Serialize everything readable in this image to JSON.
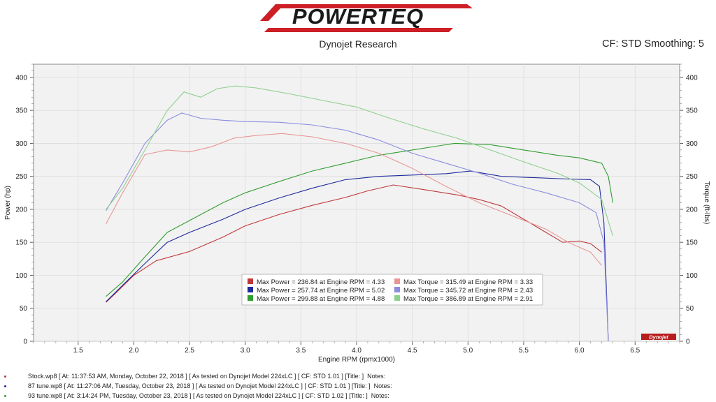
{
  "header": {
    "logo_text": "POWERTEQ",
    "subtitle": "Dynojet Research",
    "cf_info": "CF: STD Smoothing: 5"
  },
  "colors": {
    "stock": "#c0393a",
    "tune87": "#1f2a9c",
    "tune93": "#2f9e2f",
    "stock_torque": "#e89696",
    "tune87_torque": "#8c8ce0",
    "tune93_torque": "#8ed08e",
    "logo_red": "#cc1f26",
    "logo_dark": "#1a1a1a",
    "plot_bg": "#f2f2f2"
  },
  "chart_data": {
    "type": "line",
    "xlabel": "Engine RPM (rpmx1000)",
    "ylabel": "Power (hp)",
    "y2label": "Torque (ft-lbs)",
    "xlim": [
      1.1,
      6.9
    ],
    "ylim": [
      0,
      420
    ],
    "y2lim": [
      0,
      420
    ],
    "x_ticks": [
      "1.5",
      "2.0",
      "2.5",
      "3.0",
      "3.5",
      "4.0",
      "4.5",
      "5.0",
      "5.5",
      "6.0",
      "6.5"
    ],
    "y_ticks": [
      "0",
      "50",
      "100",
      "150",
      "200",
      "250",
      "300",
      "350",
      "400"
    ],
    "y2_ticks": [
      "0",
      "50",
      "100",
      "150",
      "200",
      "250",
      "300",
      "350",
      "400"
    ],
    "grid": true,
    "brand_mark": "Dynojet",
    "series": [
      {
        "color_key": "stock",
        "axis": "left",
        "x": [
          1.75,
          1.85,
          2.0,
          2.2,
          2.5,
          2.8,
          3.0,
          3.3,
          3.6,
          3.9,
          4.1,
          4.33,
          4.6,
          4.9,
          5.1,
          5.3,
          5.5,
          5.7,
          5.85,
          6.0,
          6.1,
          6.2
        ],
        "y": [
          59,
          75,
          100,
          122,
          136,
          158,
          175,
          192,
          206,
          218,
          228,
          237,
          230,
          222,
          215,
          205,
          185,
          165,
          150,
          152,
          148,
          135
        ]
      },
      {
        "color_key": "tune87",
        "axis": "left",
        "x": [
          1.75,
          1.9,
          2.1,
          2.3,
          2.5,
          2.8,
          3.0,
          3.3,
          3.6,
          3.9,
          4.2,
          4.5,
          4.8,
          5.02,
          5.3,
          5.6,
          5.9,
          6.1,
          6.18,
          6.22,
          6.26
        ],
        "y": [
          60,
          85,
          118,
          150,
          165,
          185,
          200,
          217,
          232,
          245,
          250,
          252,
          254,
          258,
          250,
          248,
          246,
          245,
          235,
          180,
          0
        ]
      },
      {
        "color_key": "tune93",
        "axis": "left",
        "x": [
          1.75,
          1.9,
          2.1,
          2.3,
          2.5,
          2.8,
          3.0,
          3.3,
          3.6,
          3.9,
          4.2,
          4.5,
          4.88,
          5.2,
          5.5,
          5.8,
          6.0,
          6.2,
          6.26,
          6.3
        ],
        "y": [
          68,
          90,
          128,
          165,
          183,
          210,
          225,
          242,
          258,
          270,
          282,
          290,
          300,
          298,
          290,
          282,
          278,
          270,
          250,
          210
        ]
      },
      {
        "color_key": "stock_torque",
        "axis": "right",
        "x": [
          1.75,
          1.9,
          2.1,
          2.3,
          2.5,
          2.7,
          2.9,
          3.1,
          3.33,
          3.6,
          3.9,
          4.2,
          4.5,
          4.8,
          5.1,
          5.4,
          5.7,
          5.9,
          6.1,
          6.2
        ],
        "y": [
          178,
          225,
          283,
          290,
          287,
          295,
          308,
          312,
          315,
          310,
          300,
          285,
          262,
          235,
          210,
          190,
          170,
          150,
          135,
          115
        ]
      },
      {
        "color_key": "tune87_torque",
        "axis": "right",
        "x": [
          1.75,
          1.9,
          2.1,
          2.3,
          2.43,
          2.6,
          2.8,
          3.0,
          3.3,
          3.6,
          3.9,
          4.2,
          4.5,
          4.8,
          5.1,
          5.4,
          5.7,
          6.0,
          6.15,
          6.22,
          6.26
        ],
        "y": [
          198,
          240,
          300,
          335,
          346,
          338,
          335,
          333,
          332,
          328,
          320,
          305,
          285,
          270,
          255,
          238,
          225,
          210,
          195,
          150,
          0
        ]
      },
      {
        "color_key": "tune93_torque",
        "axis": "right",
        "x": [
          1.75,
          1.9,
          2.1,
          2.3,
          2.45,
          2.6,
          2.75,
          2.91,
          3.1,
          3.4,
          3.7,
          4.0,
          4.3,
          4.6,
          4.9,
          5.2,
          5.5,
          5.8,
          6.0,
          6.2,
          6.3
        ],
        "y": [
          200,
          232,
          290,
          350,
          378,
          370,
          383,
          387,
          384,
          375,
          365,
          355,
          338,
          322,
          308,
          290,
          272,
          255,
          240,
          215,
          160
        ]
      }
    ],
    "legend": {
      "placement": "center-bottom",
      "entries": [
        {
          "color_key": "stock",
          "text": "Max Power = 236.84 at Engine RPM = 4.33"
        },
        {
          "color_key": "stock_torque",
          "text": "Max Torque = 315.49 at Engine RPM = 3.33"
        },
        {
          "color_key": "tune87",
          "text": "Max Power = 257.74 at Engine RPM = 5.02"
        },
        {
          "color_key": "tune87_torque",
          "text": "Max Torque = 345.72 at Engine RPM = 2.43"
        },
        {
          "color_key": "tune93",
          "text": "Max Power = 299.88 at Engine RPM = 4.88"
        },
        {
          "color_key": "tune93_torque",
          "text": "Max Torque = 386.89 at Engine RPM = 2.91"
        }
      ]
    }
  },
  "footer": {
    "runs": [
      {
        "color_key": "stock",
        "text": "Stock.wp8 [ At: 11:37:53 AM, Monday, October 22, 2018 ] [ As tested on Dynojet Model 224xLC ] [ CF: STD 1.01 ] [Title: ]  Notes:"
      },
      {
        "color_key": "tune87",
        "text": "87 tune.wp8 [ At: 11:27:06 AM, Tuesday, October 23, 2018 ] [ As tested on Dynojet Model 224xLC ] [ CF: STD 1.01 ] [Title: ]  Notes:"
      },
      {
        "color_key": "tune93",
        "text": "93 tune.wp8 [ At: 3:14:24 PM, Tuesday, October 23, 2018 ] [ As tested on Dynojet Model 224xLC ] [ CF: STD 1.02 ] [Title: ]  Notes:"
      }
    ]
  }
}
